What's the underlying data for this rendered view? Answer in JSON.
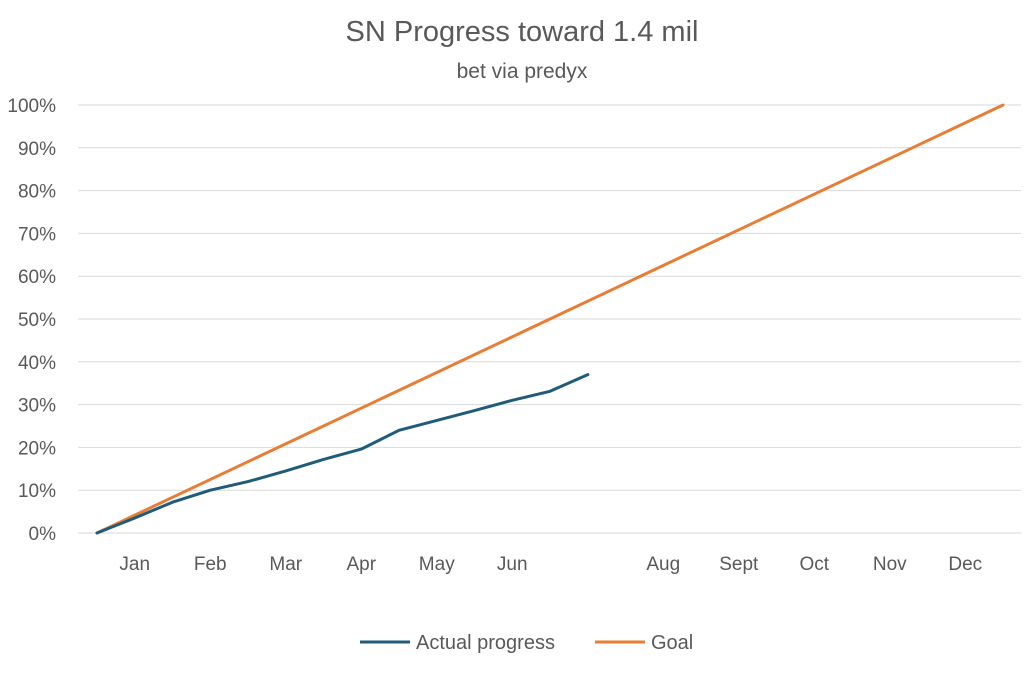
{
  "chart_data": {
    "type": "line",
    "title": "SN Progress toward 1.4 mil",
    "subtitle": "bet via predyx",
    "xlabel": "",
    "ylabel": "",
    "ylim": [
      0,
      100
    ],
    "y_ticks": [
      "0%",
      "10%",
      "20%",
      "30%",
      "40%",
      "50%",
      "60%",
      "70%",
      "80%",
      "90%",
      "100%"
    ],
    "x_tick_labels": [
      "Jan",
      "Feb",
      "Mar",
      "Apr",
      "May",
      "Jun",
      "",
      "Aug",
      "Sept",
      "Oct",
      "Nov",
      "Dec"
    ],
    "grid": true,
    "legend_position": "bottom",
    "series": [
      {
        "name": "Actual progress",
        "color": "#1f5c7a",
        "points": [
          [
            0,
            0
          ],
          [
            0.5,
            3.5
          ],
          [
            1,
            7.2
          ],
          [
            1.5,
            10
          ],
          [
            2,
            12
          ],
          [
            2.5,
            14.5
          ],
          [
            3,
            17.2
          ],
          [
            3.5,
            19.6
          ],
          [
            4,
            24
          ],
          [
            4.5,
            26.3
          ],
          [
            5,
            28.6
          ],
          [
            5.5,
            31
          ],
          [
            6,
            33.1
          ],
          [
            6.5,
            37
          ]
        ]
      },
      {
        "name": "Goal",
        "color": "#e87d36",
        "points": [
          [
            0,
            0
          ],
          [
            12,
            100
          ]
        ]
      }
    ]
  }
}
